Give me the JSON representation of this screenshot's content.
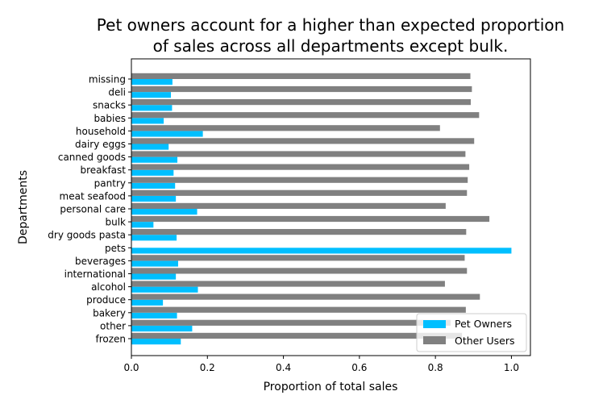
{
  "chart_data": {
    "type": "bar",
    "orientation": "horizontal",
    "title": "Pet owners account for a higher than expected proportion of sales across all departments except bulk.",
    "title_lines": [
      "Pet owners account for a higher than expected proportion",
      "of sales across all departments except bulk."
    ],
    "xlabel": "Proportion of total sales",
    "ylabel": "Departments",
    "xlim": [
      0.0,
      1.05
    ],
    "xticks": [
      "0.0",
      "0.2",
      "0.4",
      "0.6",
      "0.8",
      "1.0"
    ],
    "categories": [
      "frozen",
      "other",
      "bakery",
      "produce",
      "alcohol",
      "international",
      "beverages",
      "pets",
      "dry goods pasta",
      "bulk",
      "personal care",
      "meat seafood",
      "pantry",
      "breakfast",
      "canned goods",
      "dairy eggs",
      "household",
      "babies",
      "snacks",
      "deli",
      "missing"
    ],
    "series": [
      {
        "name": "Pet Owners",
        "color": "#00bfff",
        "values": [
          0.13,
          0.16,
          0.12,
          0.083,
          0.175,
          0.117,
          0.123,
          1.0,
          0.119,
          0.058,
          0.173,
          0.117,
          0.115,
          0.111,
          0.121,
          0.098,
          0.188,
          0.085,
          0.107,
          0.104,
          0.108
        ]
      },
      {
        "name": "Other Users",
        "color": "#808080",
        "values": [
          0.87,
          0.84,
          0.88,
          0.917,
          0.825,
          0.883,
          0.877,
          0.0,
          0.881,
          0.942,
          0.827,
          0.883,
          0.885,
          0.889,
          0.879,
          0.902,
          0.812,
          0.915,
          0.893,
          0.896,
          0.892
        ]
      }
    ],
    "legend": {
      "placement": "lower-right"
    },
    "grid": false
  }
}
